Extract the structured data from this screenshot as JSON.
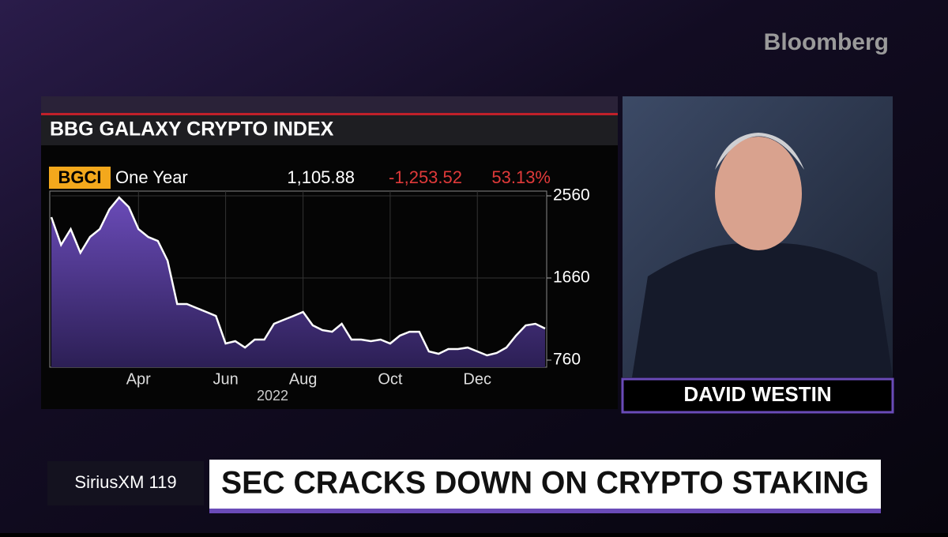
{
  "chart_data": {
    "type": "area",
    "title": "BBG GALAXY CRYPTO INDEX",
    "ticker": "BGCI",
    "period": "One Year",
    "last": "1,105.88",
    "change": "-1,253.52",
    "change_pct": "53.13%",
    "categories": [
      null,
      null,
      null,
      null,
      null,
      null,
      null,
      null,
      null,
      "Apr",
      null,
      null,
      null,
      null,
      null,
      null,
      null,
      null,
      "Jun",
      null,
      null,
      null,
      null,
      null,
      null,
      null,
      "Aug",
      null,
      null,
      null,
      null,
      null,
      null,
      null,
      null,
      "Oct",
      null,
      null,
      null,
      null,
      null,
      null,
      null,
      null,
      "Dec",
      null,
      null,
      null,
      null,
      null,
      null,
      null
    ],
    "x_label": "2022",
    "values": [
      2326,
      2023,
      2196,
      1937,
      2110,
      2196,
      2412,
      2542,
      2438,
      2196,
      2110,
      2066,
      1850,
      1374,
      1374,
      1331,
      1288,
      1244,
      942,
      968,
      898,
      985,
      985,
      1158,
      1201,
      1244,
      1288,
      1141,
      1089,
      1071,
      1158,
      985,
      985,
      968,
      985,
      942,
      1028,
      1071,
      1071,
      855,
      829,
      881,
      881,
      898,
      855,
      812,
      838,
      898,
      1028,
      1141,
      1158,
      1106
    ],
    "color": "#6a4bb8",
    "line_color": "#ffffff",
    "ylim": [
      760,
      2560
    ],
    "yticks": [
      760,
      1660,
      2560
    ],
    "grid": true
  },
  "broadcast": {
    "brand": "Bloomberg",
    "anchor_name": "DAVID WESTIN",
    "channel": "SiriusXM 119",
    "headline": "SEC CRACKS DOWN ON CRYPTO STAKING"
  }
}
